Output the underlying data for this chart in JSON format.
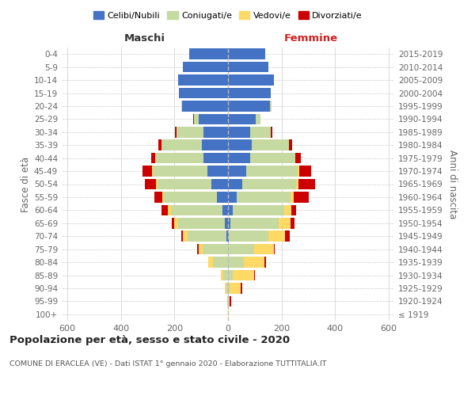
{
  "age_groups": [
    "100+",
    "95-99",
    "90-94",
    "85-89",
    "80-84",
    "75-79",
    "70-74",
    "65-69",
    "60-64",
    "55-59",
    "50-54",
    "45-49",
    "40-44",
    "35-39",
    "30-34",
    "25-29",
    "20-24",
    "15-19",
    "10-14",
    "5-9",
    "0-4"
  ],
  "birth_years": [
    "≤ 1919",
    "1920-1924",
    "1925-1929",
    "1930-1934",
    "1935-1939",
    "1940-1944",
    "1945-1949",
    "1950-1954",
    "1955-1959",
    "1960-1964",
    "1965-1969",
    "1970-1974",
    "1975-1979",
    "1980-1984",
    "1985-1989",
    "1990-1994",
    "1995-1999",
    "2000-2004",
    "2005-2009",
    "2010-2014",
    "2015-2019"
  ],
  "maschi": {
    "celibi": [
      0,
      0,
      0,
      0,
      0,
      0,
      5,
      12,
      22,
      42,
      62,
      78,
      92,
      97,
      92,
      108,
      170,
      182,
      185,
      168,
      145
    ],
    "coniugati": [
      0,
      2,
      6,
      18,
      55,
      95,
      145,
      175,
      192,
      198,
      202,
      202,
      178,
      152,
      100,
      20,
      5,
      2,
      0,
      0,
      0
    ],
    "vedovi": [
      0,
      2,
      5,
      10,
      18,
      15,
      18,
      14,
      9,
      4,
      4,
      2,
      2,
      0,
      0,
      0,
      0,
      0,
      0,
      0,
      0
    ],
    "divorziati": [
      0,
      0,
      0,
      0,
      0,
      5,
      5,
      10,
      25,
      32,
      42,
      36,
      15,
      10,
      5,
      2,
      0,
      0,
      0,
      0,
      0
    ]
  },
  "femmine": {
    "nubili": [
      0,
      0,
      0,
      0,
      0,
      0,
      4,
      8,
      18,
      32,
      52,
      68,
      82,
      88,
      82,
      102,
      155,
      158,
      172,
      152,
      138
    ],
    "coniugate": [
      0,
      2,
      5,
      18,
      58,
      98,
      148,
      182,
      192,
      202,
      202,
      192,
      168,
      138,
      78,
      18,
      6,
      2,
      0,
      0,
      0
    ],
    "vedove": [
      2,
      5,
      42,
      78,
      78,
      72,
      62,
      42,
      25,
      10,
      9,
      5,
      2,
      2,
      0,
      0,
      0,
      0,
      0,
      0,
      0
    ],
    "divorziate": [
      0,
      5,
      5,
      5,
      5,
      5,
      15,
      15,
      20,
      58,
      62,
      46,
      20,
      10,
      5,
      2,
      0,
      0,
      0,
      0,
      0
    ]
  },
  "colors": {
    "celibi": "#4472C4",
    "coniugati": "#C5D9A0",
    "vedovi": "#FFD966",
    "divorziati": "#CC0000"
  },
  "xlim": 620,
  "title": "Popolazione per età, sesso e stato civile - 2020",
  "subtitle": "COMUNE DI ERACLEA (VE) - Dati ISTAT 1° gennaio 2020 - Elaborazione TUTTITALIA.IT",
  "header_left": "Maschi",
  "header_right": "Femmine",
  "ylabel_left": "Fasce di età",
  "ylabel_right": "Anni di nascita",
  "bg_color": "#ffffff",
  "grid_color": "#cccccc",
  "bar_height": 0.82
}
